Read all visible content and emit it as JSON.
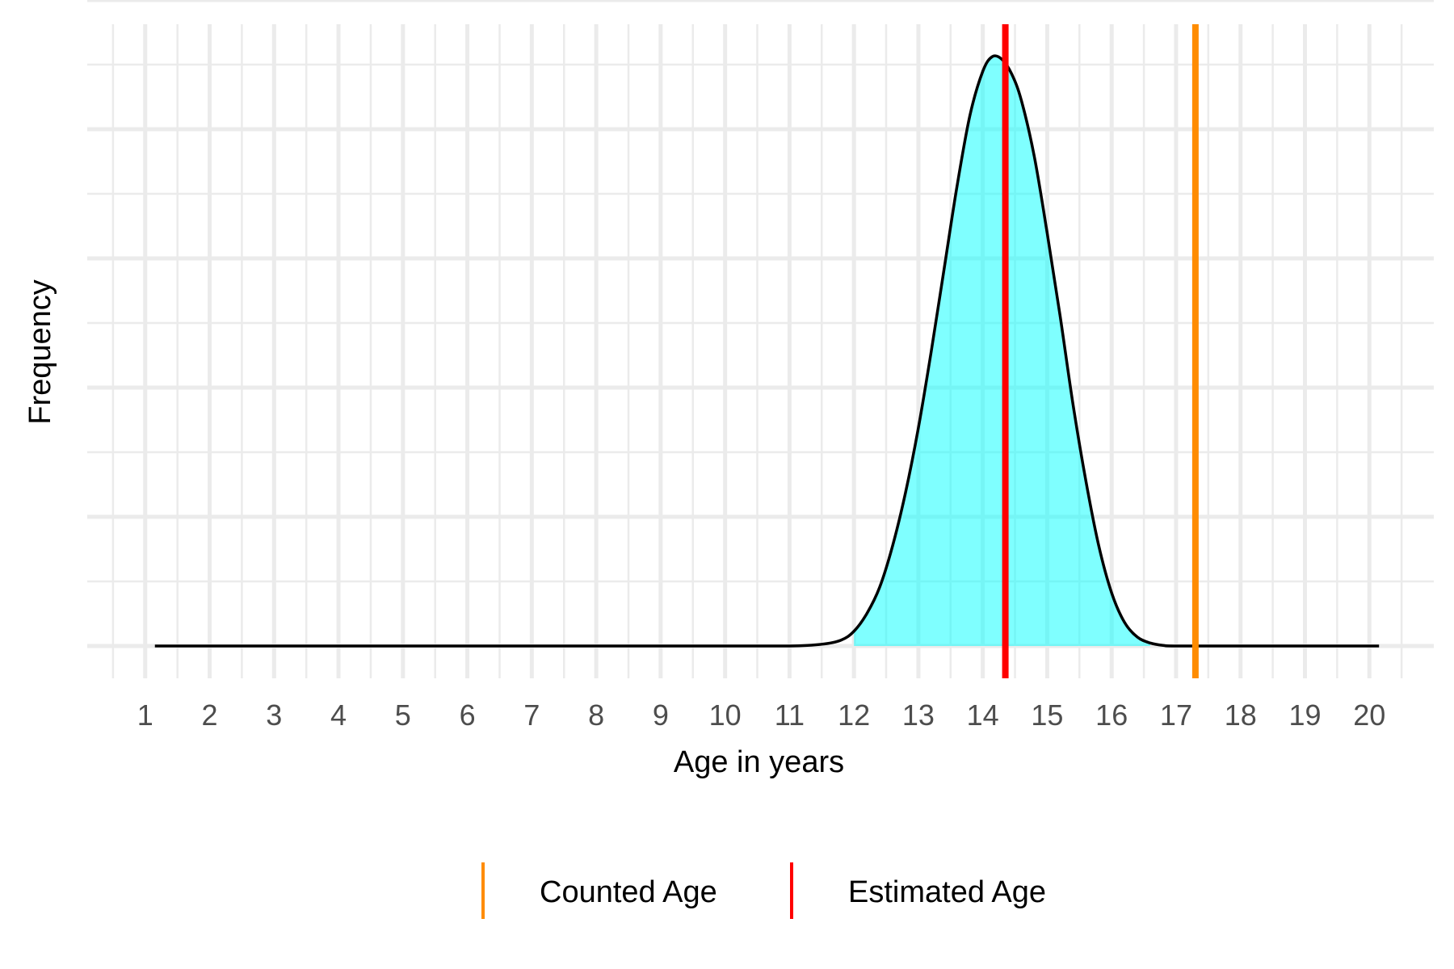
{
  "chart_data": {
    "type": "area",
    "xlabel": "Age in years",
    "ylabel": "Frequency",
    "xlim": [
      0.1,
      21.0
    ],
    "ylim": [
      0,
      1.0
    ],
    "x_ticks": [
      1,
      2,
      3,
      4,
      5,
      6,
      7,
      8,
      9,
      10,
      11,
      12,
      13,
      14,
      15,
      16,
      17,
      18,
      19,
      20
    ],
    "y_tick_labels_shown": false,
    "grid": true,
    "density": {
      "x": [
        1.15,
        2,
        3,
        4,
        5,
        6,
        7,
        8,
        9,
        10,
        11,
        11.5,
        11.8,
        12.0,
        12.2,
        12.4,
        12.6,
        12.8,
        13.0,
        13.2,
        13.4,
        13.6,
        13.8,
        14.0,
        14.15,
        14.3,
        14.45,
        14.6,
        14.8,
        15.0,
        15.2,
        15.4,
        15.6,
        15.8,
        16.0,
        16.2,
        16.4,
        16.6,
        16.8,
        17.0,
        18,
        19,
        20.15
      ],
      "y": [
        0,
        0,
        0,
        0,
        0,
        0,
        0,
        0,
        0,
        0,
        0,
        0.003,
        0.01,
        0.025,
        0.055,
        0.1,
        0.17,
        0.26,
        0.37,
        0.5,
        0.64,
        0.78,
        0.9,
        0.975,
        1.0,
        0.995,
        0.97,
        0.925,
        0.83,
        0.7,
        0.56,
        0.41,
        0.28,
        0.17,
        0.09,
        0.04,
        0.015,
        0.005,
        0.001,
        0,
        0,
        0,
        0
      ],
      "fill_x_range": [
        12.0,
        16.6
      ]
    },
    "vlines": [
      {
        "name": "Counted Age",
        "x": 17.3,
        "color": "#ff8c00"
      },
      {
        "name": "Estimated Age",
        "x": 14.35,
        "color": "#ff0000"
      }
    ],
    "legend_position": "bottom",
    "colors": {
      "fill": "#00ffff",
      "fill_opacity": 0.5,
      "curve": "#000000",
      "grid": "#ebebeb",
      "counted_age": "#ff8c00",
      "estimated_age": "#ff0000"
    }
  }
}
